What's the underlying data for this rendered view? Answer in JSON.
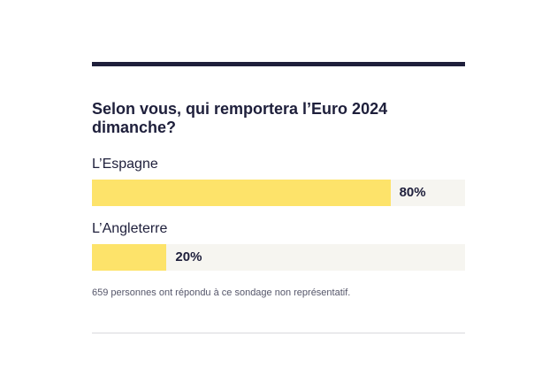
{
  "poll": {
    "question": "Selon vous, qui remportera l’Euro 2024 dimanche?",
    "options": [
      {
        "label": "L’Espagne",
        "percent": 80,
        "percent_label": "80%"
      },
      {
        "label": "L’Angleterre",
        "percent": 20,
        "percent_label": "20%"
      }
    ],
    "footnote": "659 personnes ont répondu à ce sondage non représentatif."
  },
  "colors": {
    "rule": "#1e1f3b",
    "bar_fill": "#fde36a",
    "bar_track": "#f6f5f0",
    "text": "#1e1f3b"
  }
}
